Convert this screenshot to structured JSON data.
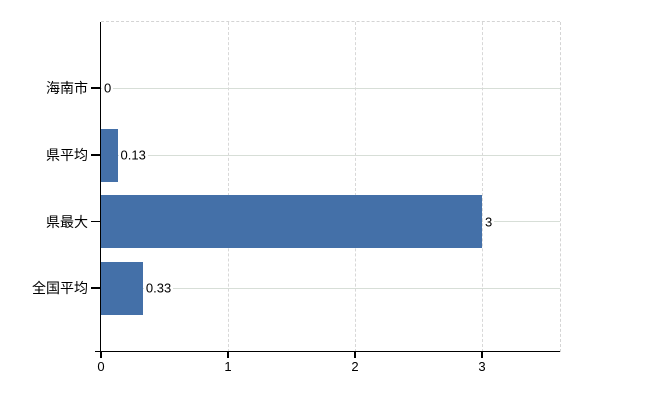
{
  "chart_data": {
    "type": "bar",
    "orientation": "horizontal",
    "title": "",
    "categories": [
      "海南市",
      "県平均",
      "県最大",
      "全国平均"
    ],
    "values": [
      0,
      0.13,
      3,
      0.33
    ],
    "value_labels": [
      "0",
      "0.13",
      "3",
      "0.33"
    ],
    "x_tick_labels": [
      "0",
      "1",
      "2",
      "3"
    ],
    "x_tick_values": [
      0,
      1,
      2,
      3
    ],
    "xlim": [
      0,
      3.61
    ],
    "grid": true,
    "legend_position": "none",
    "colors": {
      "bar": "#4470a8",
      "axis": "#000000",
      "label_text": "#000000",
      "category_row_line": "#d7ded7",
      "gridline": "#d8d8d8",
      "plot_border": "#d4d4d4",
      "background": "#ffffff"
    }
  }
}
